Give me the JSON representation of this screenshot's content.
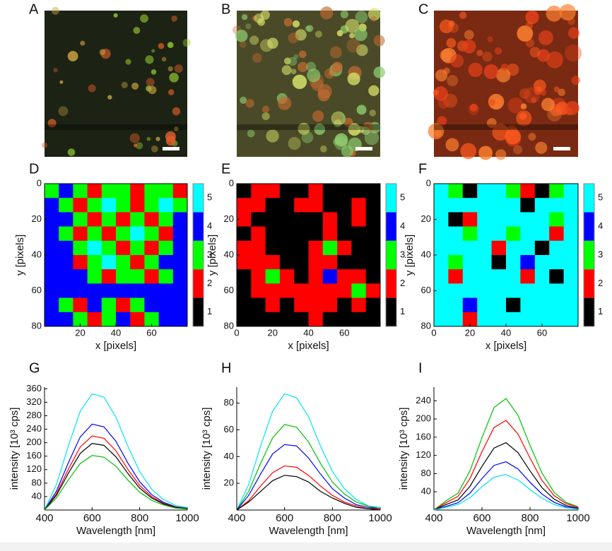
{
  "images": [
    {
      "label": "A"
    },
    {
      "label": "B"
    },
    {
      "label": "C"
    }
  ],
  "chart_data": [
    {
      "type": "heatmap",
      "panel": "D",
      "xlabel": "x [pixels]",
      "ylabel": "y [pixels]",
      "xlim": [
        0,
        80
      ],
      "ylim": [
        0,
        80
      ],
      "xticks": [
        20,
        40,
        60
      ],
      "yticks": [
        0,
        20,
        40,
        60,
        80
      ],
      "colorbar_ticks": [
        1,
        2,
        3,
        4,
        5
      ],
      "colors": [
        "#000000",
        "#ff0000",
        "#00ff00",
        "#0000ff",
        "#00ffff"
      ],
      "z": [
        [
          3,
          4,
          3,
          2,
          3,
          3,
          2,
          3,
          3,
          2
        ],
        [
          4,
          3,
          2,
          3,
          5,
          3,
          2,
          3,
          5,
          3
        ],
        [
          4,
          4,
          3,
          2,
          3,
          2,
          3,
          2,
          3,
          4
        ],
        [
          4,
          3,
          2,
          3,
          2,
          3,
          5,
          3,
          2,
          4
        ],
        [
          4,
          4,
          3,
          5,
          3,
          2,
          3,
          2,
          3,
          4
        ],
        [
          4,
          4,
          2,
          3,
          5,
          3,
          2,
          3,
          4,
          4
        ],
        [
          4,
          4,
          4,
          3,
          2,
          3,
          3,
          2,
          3,
          4
        ],
        [
          4,
          4,
          4,
          4,
          4,
          4,
          4,
          4,
          4,
          4
        ],
        [
          4,
          3,
          2,
          4,
          3,
          2,
          3,
          4,
          4,
          4
        ],
        [
          4,
          4,
          3,
          2,
          3,
          4,
          2,
          3,
          4,
          4
        ]
      ]
    },
    {
      "type": "heatmap",
      "panel": "E",
      "xlabel": "x [pixels]",
      "ylabel": "y [pixels]",
      "xlim": [
        0,
        80
      ],
      "ylim": [
        0,
        80
      ],
      "xticks": [
        0,
        20,
        40,
        60
      ],
      "yticks": [
        0,
        20,
        40,
        60,
        80
      ],
      "colorbar_ticks": [
        1,
        2,
        3,
        4,
        5
      ],
      "colors": [
        "#000000",
        "#ff0000",
        "#00ff00",
        "#0000ff",
        "#00ffff"
      ],
      "z": [
        [
          1,
          2,
          2,
          1,
          1,
          2,
          1,
          1,
          1,
          1
        ],
        [
          2,
          2,
          1,
          1,
          2,
          2,
          1,
          1,
          2,
          1
        ],
        [
          2,
          1,
          1,
          1,
          1,
          1,
          2,
          1,
          2,
          1
        ],
        [
          1,
          2,
          1,
          1,
          1,
          1,
          2,
          1,
          1,
          1
        ],
        [
          2,
          2,
          1,
          1,
          1,
          2,
          3,
          2,
          1,
          1
        ],
        [
          2,
          2,
          2,
          1,
          1,
          2,
          2,
          1,
          1,
          1
        ],
        [
          1,
          2,
          3,
          2,
          1,
          2,
          4,
          2,
          2,
          1
        ],
        [
          1,
          2,
          2,
          2,
          2,
          2,
          2,
          2,
          3,
          2
        ],
        [
          1,
          1,
          2,
          1,
          2,
          2,
          2,
          1,
          2,
          1
        ],
        [
          1,
          1,
          1,
          1,
          1,
          2,
          1,
          1,
          1,
          1
        ]
      ]
    },
    {
      "type": "heatmap",
      "panel": "F",
      "xlabel": "x [pixels]",
      "ylabel": "y [pixels]",
      "xlim": [
        0,
        80
      ],
      "ylim": [
        0,
        80
      ],
      "xticks": [
        0,
        20,
        40,
        60
      ],
      "yticks": [
        0,
        20,
        40,
        60,
        80
      ],
      "colorbar_ticks": [
        1,
        2,
        3,
        4,
        5
      ],
      "colors": [
        "#000000",
        "#ff0000",
        "#00ff00",
        "#0000ff",
        "#00ffff"
      ],
      "z": [
        [
          5,
          3,
          1,
          5,
          5,
          3,
          2,
          1,
          3,
          5
        ],
        [
          5,
          5,
          5,
          5,
          5,
          5,
          1,
          5,
          5,
          5
        ],
        [
          5,
          1,
          2,
          5,
          5,
          5,
          5,
          5,
          3,
          5
        ],
        [
          5,
          5,
          3,
          5,
          5,
          3,
          5,
          5,
          2,
          5
        ],
        [
          5,
          5,
          5,
          5,
          2,
          5,
          5,
          1,
          5,
          5
        ],
        [
          5,
          3,
          5,
          5,
          1,
          5,
          4,
          5,
          5,
          5
        ],
        [
          5,
          2,
          5,
          5,
          5,
          5,
          2,
          5,
          1,
          5
        ],
        [
          5,
          5,
          5,
          5,
          5,
          5,
          5,
          5,
          5,
          5
        ],
        [
          5,
          5,
          4,
          5,
          5,
          1,
          5,
          5,
          5,
          5
        ],
        [
          5,
          5,
          2,
          5,
          5,
          5,
          5,
          5,
          5,
          5
        ]
      ]
    },
    {
      "type": "line",
      "panel": "G",
      "xlabel": "Wavelength [nm]",
      "ylabel": "intensity [10³ cps]",
      "xlim": [
        400,
        1000
      ],
      "ylim": [
        0,
        365
      ],
      "xticks": [
        400,
        600,
        800,
        1000
      ],
      "yticks": [
        40,
        80,
        120,
        160,
        200,
        240,
        280,
        320,
        360
      ],
      "x": [
        400,
        450,
        500,
        550,
        600,
        650,
        700,
        750,
        800,
        850,
        900,
        950,
        1000
      ],
      "series": [
        {
          "color": "#00e5ee",
          "values": [
            0,
            76,
            190,
            293,
            345,
            335,
            276,
            190,
            114,
            62,
            31,
            14,
            7
          ]
        },
        {
          "color": "#0000ff",
          "values": [
            0,
            56,
            140,
            217,
            255,
            247,
            204,
            140,
            84,
            46,
            23,
            10,
            5
          ]
        },
        {
          "color": "#ff0000",
          "values": [
            0,
            48,
            121,
            187,
            220,
            213,
            176,
            121,
            73,
            40,
            20,
            9,
            4
          ]
        },
        {
          "color": "#000000",
          "values": [
            0,
            44,
            109,
            168,
            198,
            192,
            158,
            109,
            65,
            36,
            18,
            8,
            4
          ]
        },
        {
          "color": "#00c000",
          "values": [
            0,
            36,
            89,
            138,
            162,
            157,
            130,
            89,
            53,
            29,
            15,
            6,
            3
          ]
        }
      ]
    },
    {
      "type": "line",
      "panel": "H",
      "xlabel": "Wavelength [nm]",
      "ylabel": "intensity [10³ cps]",
      "xlim": [
        400,
        1000
      ],
      "ylim": [
        0,
        92
      ],
      "xticks": [
        400,
        600,
        800,
        1000
      ],
      "yticks": [
        20,
        40,
        60,
        80
      ],
      "x": [
        400,
        450,
        500,
        550,
        600,
        650,
        700,
        750,
        800,
        850,
        900,
        950,
        1000
      ],
      "series": [
        {
          "color": "#00e5ee",
          "values": [
            0,
            19,
            48,
            74,
            87,
            84,
            70,
            48,
            29,
            16,
            8,
            3,
            2
          ]
        },
        {
          "color": "#00c000",
          "values": [
            0,
            14,
            35,
            54,
            64,
            62,
            51,
            35,
            21,
            12,
            6,
            3,
            1
          ]
        },
        {
          "color": "#0000ff",
          "values": [
            0,
            11,
            27,
            42,
            49,
            48,
            39,
            27,
            16,
            9,
            4,
            2,
            1
          ]
        },
        {
          "color": "#ff0000",
          "values": [
            0,
            7,
            18,
            28,
            33,
            32,
            26,
            18,
            11,
            6,
            3,
            1,
            1
          ]
        },
        {
          "color": "#000000",
          "values": [
            0,
            6,
            14,
            22,
            26,
            25,
            21,
            14,
            9,
            5,
            2,
            1,
            0
          ]
        }
      ]
    },
    {
      "type": "line",
      "panel": "I",
      "xlabel": "Wavelength [nm]",
      "ylabel": "intensity [10³ cps]",
      "xlim": [
        400,
        1000
      ],
      "ylim": [
        0,
        270
      ],
      "xticks": [
        400,
        600,
        800,
        1000
      ],
      "yticks": [
        40,
        80,
        120,
        160,
        200,
        240
      ],
      "x": [
        400,
        450,
        500,
        550,
        600,
        650,
        700,
        750,
        800,
        850,
        900,
        950,
        1000
      ],
      "series": [
        {
          "color": "#00c000",
          "values": [
            0,
            20,
            37,
            86,
            159,
            225,
            245,
            208,
            142,
            81,
            39,
            17,
            7
          ]
        },
        {
          "color": "#ff0000",
          "values": [
            0,
            16,
            30,
            69,
            128,
            181,
            197,
            167,
            114,
            65,
            32,
            14,
            6
          ]
        },
        {
          "color": "#000000",
          "values": [
            0,
            12,
            22,
            52,
            96,
            136,
            148,
            126,
            86,
            49,
            24,
            10,
            4
          ]
        },
        {
          "color": "#0000ff",
          "values": [
            0,
            8,
            16,
            37,
            69,
            98,
            106,
            90,
            61,
            35,
            17,
            7,
            3
          ]
        },
        {
          "color": "#00e5ee",
          "values": [
            0,
            6,
            12,
            27,
            51,
            72,
            78,
            66,
            45,
            26,
            12,
            5,
            2
          ]
        }
      ]
    }
  ]
}
